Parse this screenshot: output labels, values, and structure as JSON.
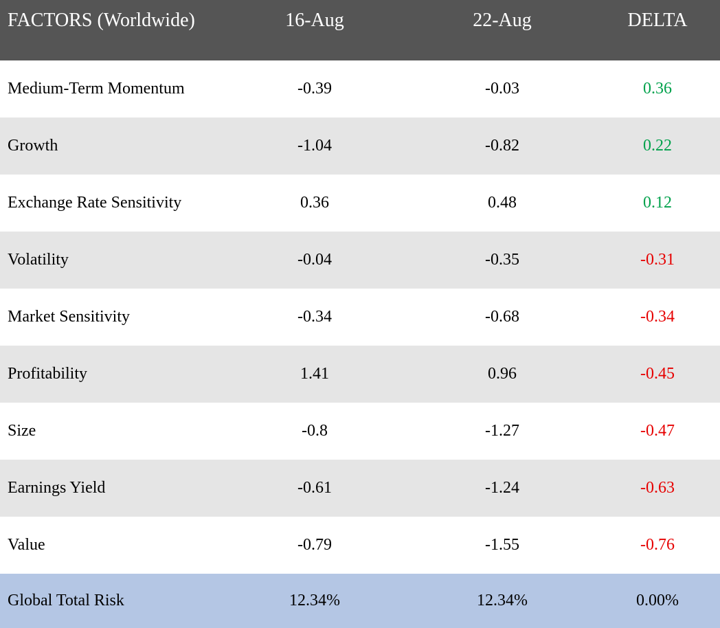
{
  "header": {
    "factor": "FACTORS (Worldwide)",
    "date1": "16-Aug",
    "date2": "22-Aug",
    "delta": "DELTA"
  },
  "colors": {
    "header_bg": "#555555",
    "positive": "#00a14b",
    "negative": "#e60000",
    "total_bg": "#b4c6e4",
    "alt_row_bg": "#e5e5e5"
  },
  "chart_data": {
    "type": "table",
    "columns": [
      "FACTORS (Worldwide)",
      "16-Aug",
      "22-Aug",
      "DELTA"
    ],
    "rows": [
      {
        "factor": "Medium-Term Momentum",
        "d1": "-0.39",
        "d2": "-0.03",
        "delta": "0.36",
        "sign": "positive"
      },
      {
        "factor": "Growth",
        "d1": "-1.04",
        "d2": "-0.82",
        "delta": "0.22",
        "sign": "positive"
      },
      {
        "factor": "Exchange Rate Sensitivity",
        "d1": "0.36",
        "d2": "0.48",
        "delta": "0.12",
        "sign": "positive"
      },
      {
        "factor": "Volatility",
        "d1": "-0.04",
        "d2": "-0.35",
        "delta": "-0.31",
        "sign": "negative"
      },
      {
        "factor": "Market Sensitivity",
        "d1": "-0.34",
        "d2": "-0.68",
        "delta": "-0.34",
        "sign": "negative"
      },
      {
        "factor": "Profitability",
        "d1": "1.41",
        "d2": "0.96",
        "delta": "-0.45",
        "sign": "negative"
      },
      {
        "factor": "Size",
        "d1": "-0.8",
        "d2": "-1.27",
        "delta": "-0.47",
        "sign": "negative"
      },
      {
        "factor": "Earnings Yield",
        "d1": "-0.61",
        "d2": "-1.24",
        "delta": "-0.63",
        "sign": "negative"
      },
      {
        "factor": "Value",
        "d1": "-0.79",
        "d2": "-1.55",
        "delta": "-0.76",
        "sign": "negative"
      }
    ],
    "total": {
      "factor": "Global Total Risk",
      "d1": "12.34%",
      "d2": "12.34%",
      "delta": "0.00%",
      "sign": "neutral"
    }
  }
}
